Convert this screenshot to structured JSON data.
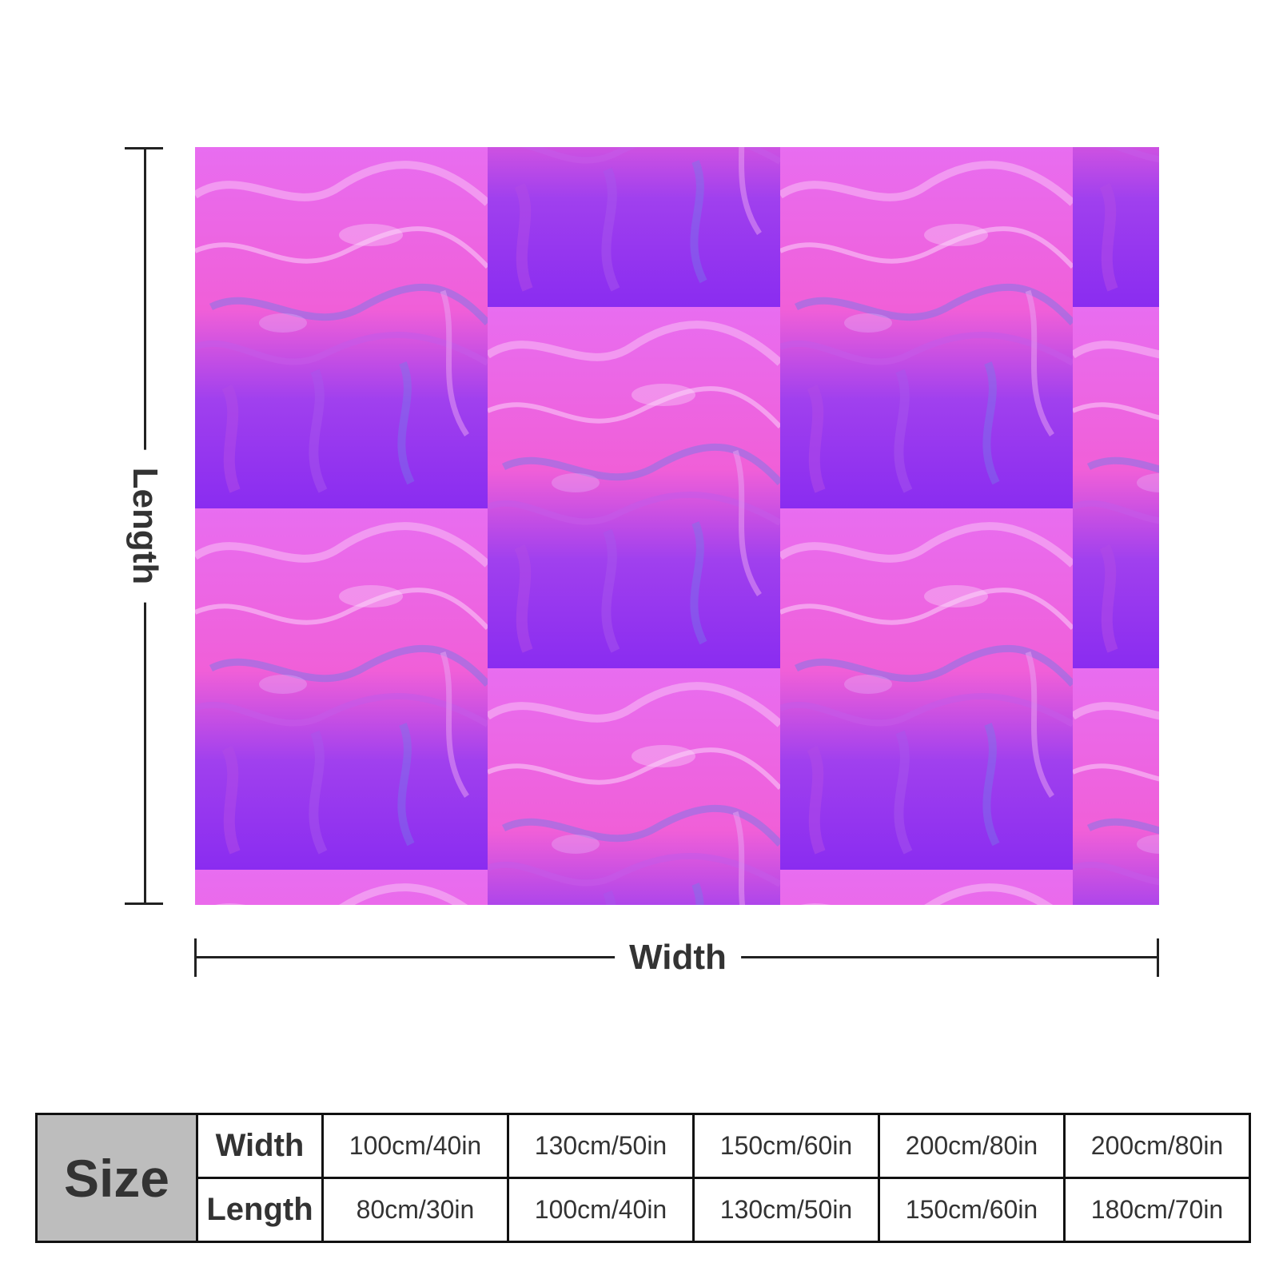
{
  "labels": {
    "length": "Length",
    "width": "Width"
  },
  "table": {
    "header": "Size",
    "rows": [
      {
        "label": "Width",
        "values": [
          "100cm/40in",
          "130cm/50in",
          "150cm/60in",
          "200cm/80in",
          "200cm/80in"
        ]
      },
      {
        "label": "Length",
        "values": [
          "80cm/30in",
          "100cm/40in",
          "130cm/50in",
          "150cm/60in",
          "180cm/70in"
        ]
      }
    ]
  },
  "colors": {
    "pattern_light": "#e86df0",
    "pattern_pink": "#f05fd8",
    "pattern_purple": "#8a2cf0",
    "pattern_blue": "#7a78e8",
    "table_header_bg": "#bdbdbd"
  },
  "image": {
    "subject": "purple-pink-marble-fluid-art-throw-blanket"
  }
}
